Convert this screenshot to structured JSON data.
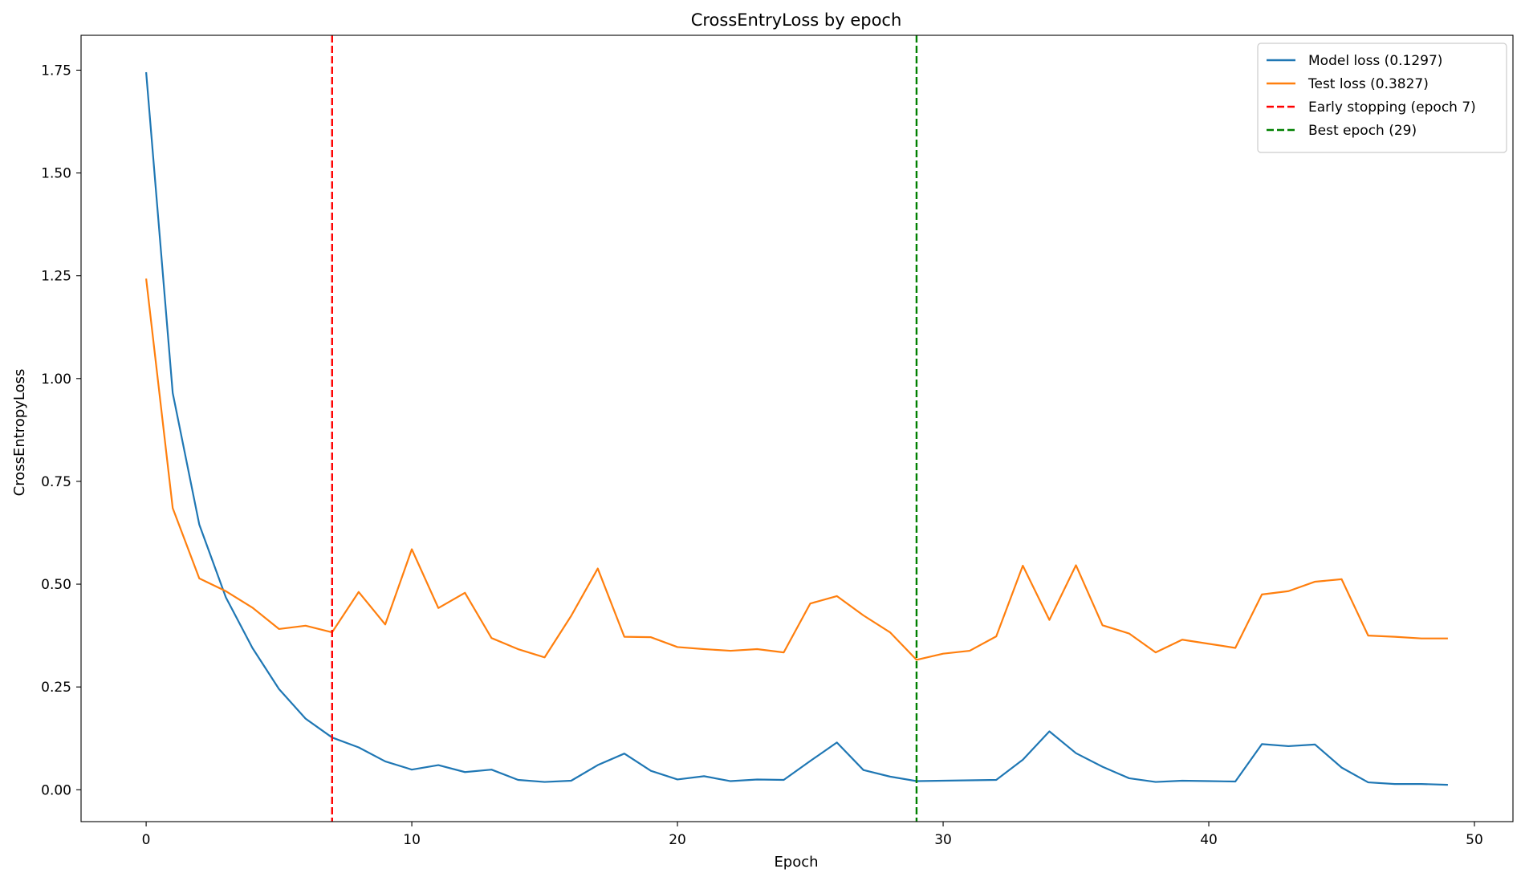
{
  "chart_data": {
    "type": "line",
    "title": "CrossEntryLoss by epoch",
    "xlabel": "Epoch",
    "ylabel": "CrossEntropyLoss",
    "xlim": [
      -2.45,
      51.45
    ],
    "ylim": [
      -0.0775,
      1.8348
    ],
    "x_ticks": [
      0,
      10,
      20,
      30,
      40,
      50
    ],
    "x_tick_labels": [
      "0",
      "10",
      "20",
      "30",
      "40",
      "50"
    ],
    "y_ticks": [
      0.0,
      0.25,
      0.5,
      0.75,
      1.0,
      1.25,
      1.5,
      1.75
    ],
    "y_tick_labels": [
      "0.00",
      "0.25",
      "0.50",
      "0.75",
      "1.00",
      "1.25",
      "1.50",
      "1.75"
    ],
    "grid": false,
    "legend_position": "top-right",
    "x": [
      0,
      1,
      2,
      3,
      4,
      5,
      6,
      7,
      8,
      9,
      10,
      11,
      12,
      13,
      14,
      15,
      16,
      17,
      18,
      19,
      20,
      21,
      22,
      23,
      24,
      25,
      26,
      27,
      28,
      29,
      30,
      31,
      32,
      33,
      34,
      35,
      36,
      37,
      38,
      39,
      40,
      41,
      42,
      43,
      44,
      45,
      46,
      47,
      48,
      49
    ],
    "series": [
      {
        "name": "Model loss (0.1297)",
        "color": "#1f77b4",
        "values": [
          1.745,
          0.965,
          0.645,
          0.468,
          0.345,
          0.245,
          0.173,
          0.127,
          0.103,
          0.069,
          0.049,
          0.06,
          0.043,
          0.049,
          0.024,
          0.019,
          0.022,
          0.06,
          0.088,
          0.046,
          0.025,
          0.033,
          0.021,
          0.025,
          0.024,
          0.07,
          0.115,
          0.048,
          0.032,
          0.021,
          0.022,
          0.023,
          0.024,
          0.073,
          0.142,
          0.089,
          0.056,
          0.028,
          0.019,
          0.022,
          0.021,
          0.02,
          0.111,
          0.106,
          0.11,
          0.054,
          0.018,
          0.014,
          0.014,
          0.012
        ]
      },
      {
        "name": "Test loss (0.3827)",
        "color": "#ff7f0e",
        "values": [
          1.243,
          0.685,
          0.514,
          0.483,
          0.443,
          0.391,
          0.399,
          0.383,
          0.481,
          0.402,
          0.585,
          0.442,
          0.479,
          0.369,
          0.342,
          0.322,
          0.423,
          0.538,
          0.372,
          0.371,
          0.347,
          0.342,
          0.338,
          0.342,
          0.334,
          0.453,
          0.471,
          0.424,
          0.383,
          0.316,
          0.331,
          0.338,
          0.373,
          0.545,
          0.413,
          0.546,
          0.4,
          0.38,
          0.334,
          0.365,
          0.355,
          0.345,
          0.475,
          0.483,
          0.506,
          0.512,
          0.375,
          0.372,
          0.368,
          0.368
        ]
      }
    ],
    "vlines": [
      {
        "name": "Early stopping (epoch 7)",
        "x": 7,
        "color": "#ff0000",
        "style": "dashed"
      },
      {
        "name": "Best epoch (29)",
        "x": 29,
        "color": "#008000",
        "style": "dashed"
      }
    ]
  }
}
